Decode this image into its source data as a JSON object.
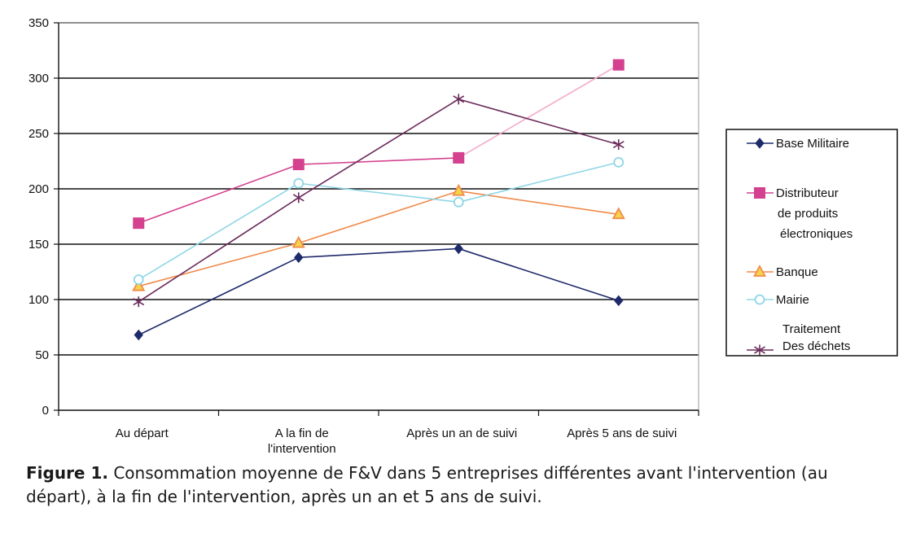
{
  "chart_data": {
    "type": "line",
    "categories": [
      "Au départ",
      "A la fin de l'intervention",
      "Après un an de suivi",
      "Après 5 ans de suivi"
    ],
    "category_lines": [
      [
        "Au départ"
      ],
      [
        "A la fin de",
        "l'intervention"
      ],
      [
        "Après un an de suivi"
      ],
      [
        "Après 5 ans de suivi"
      ]
    ],
    "ylim": [
      0,
      350
    ],
    "yticks": [
      0,
      50,
      100,
      150,
      200,
      250,
      300,
      350
    ],
    "grid": true,
    "legend_position": "right",
    "series": [
      {
        "name": "Base Militaire",
        "legend_lines": [
          "Base Militaire"
        ],
        "values": [
          68,
          138,
          146,
          99
        ],
        "color": "#1f2a6b",
        "marker": "diamond"
      },
      {
        "name": "Distributeur de produits électroniques",
        "legend_lines": [
          "Distributeur",
          "de produits",
          "électroniques"
        ],
        "values": [
          169,
          222,
          228,
          312
        ],
        "color": "#d4418e",
        "marker": "square"
      },
      {
        "name": "Banque",
        "legend_lines": [
          "Banque"
        ],
        "values": [
          112,
          151,
          198,
          177
        ],
        "color": "#f08a4b",
        "marker": "triangle"
      },
      {
        "name": "Mairie",
        "legend_lines": [
          "Mairie"
        ],
        "values": [
          118,
          205,
          188,
          224
        ],
        "color": "#8fd6e6",
        "marker": "circle"
      },
      {
        "name": "Traitement Des déchets",
        "legend_lines": [
          "Traitement",
          "Des déchets"
        ],
        "values": [
          98,
          192,
          281,
          240
        ],
        "color": "#6a2a5a",
        "marker": "star"
      }
    ],
    "extra_segments": [
      {
        "from_category": 2,
        "to_category": 3,
        "from_value": 228,
        "to_value": 312,
        "color": "#f4a9c9"
      }
    ]
  },
  "caption": {
    "label": "Figure 1.",
    "text": " Consommation moyenne de F&V dans 5 entreprises différentes avant l'intervention (au départ), à la fin de l'intervention, après un an et 5 ans de suivi."
  }
}
